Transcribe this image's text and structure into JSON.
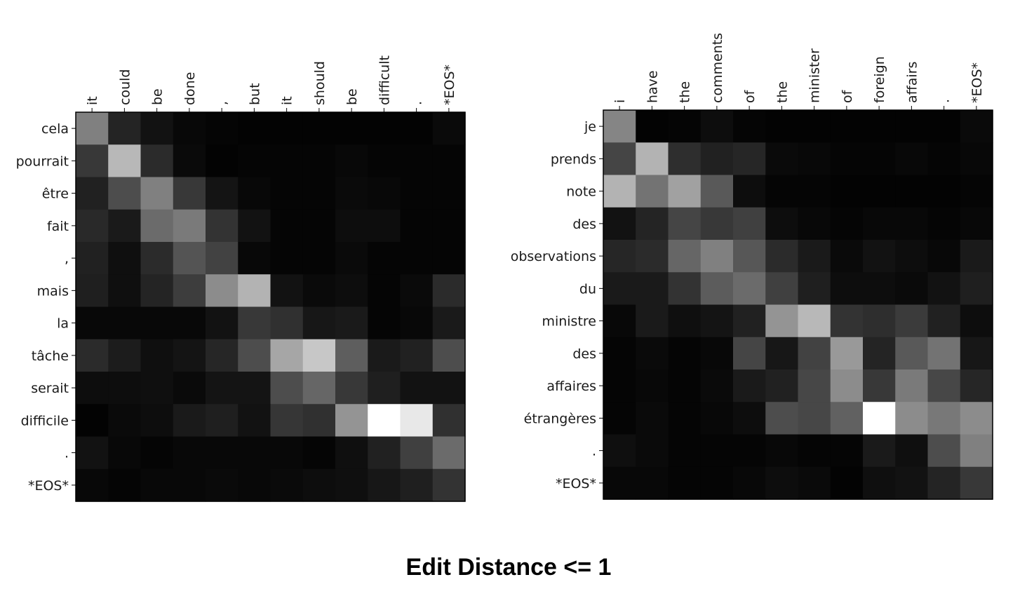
{
  "caption": "Edit Distance <= 1",
  "chart_data": [
    {
      "type": "heatmap",
      "colormap": "gray",
      "value_range": [
        0,
        1
      ],
      "x_tick_labels": [
        "it",
        "could",
        "be",
        "done",
        ",",
        "but",
        "it",
        "should",
        "be",
        "difficult",
        ".",
        "*EOS*"
      ],
      "y_tick_labels": [
        "cela",
        "pourrait",
        "être",
        "fait",
        ",",
        "mais",
        "la",
        "tâche",
        "serait",
        "difficile",
        ".",
        "*EOS*"
      ],
      "values": [
        [
          0.5,
          0.14,
          0.07,
          0.03,
          0.02,
          0.01,
          0.01,
          0.01,
          0.01,
          0.01,
          0.01,
          0.04
        ],
        [
          0.22,
          0.72,
          0.17,
          0.04,
          0.01,
          0.02,
          0.02,
          0.02,
          0.03,
          0.02,
          0.02,
          0.02
        ],
        [
          0.13,
          0.3,
          0.5,
          0.22,
          0.08,
          0.03,
          0.02,
          0.02,
          0.04,
          0.03,
          0.02,
          0.02
        ],
        [
          0.16,
          0.1,
          0.42,
          0.48,
          0.2,
          0.07,
          0.02,
          0.02,
          0.05,
          0.05,
          0.02,
          0.02
        ],
        [
          0.13,
          0.06,
          0.17,
          0.33,
          0.26,
          0.03,
          0.02,
          0.02,
          0.04,
          0.02,
          0.02,
          0.02
        ],
        [
          0.12,
          0.06,
          0.14,
          0.24,
          0.55,
          0.7,
          0.07,
          0.04,
          0.05,
          0.02,
          0.04,
          0.17
        ],
        [
          0.03,
          0.03,
          0.03,
          0.03,
          0.07,
          0.22,
          0.19,
          0.09,
          0.1,
          0.02,
          0.03,
          0.1
        ],
        [
          0.17,
          0.11,
          0.06,
          0.08,
          0.15,
          0.3,
          0.65,
          0.78,
          0.37,
          0.1,
          0.13,
          0.3
        ],
        [
          0.05,
          0.05,
          0.06,
          0.04,
          0.08,
          0.08,
          0.3,
          0.4,
          0.22,
          0.12,
          0.07,
          0.07
        ],
        [
          0.01,
          0.04,
          0.05,
          0.1,
          0.12,
          0.07,
          0.21,
          0.19,
          0.58,
          1.0,
          0.91,
          0.19
        ],
        [
          0.07,
          0.03,
          0.02,
          0.03,
          0.03,
          0.03,
          0.03,
          0.02,
          0.06,
          0.13,
          0.25,
          0.42
        ],
        [
          0.03,
          0.02,
          0.03,
          0.03,
          0.04,
          0.03,
          0.04,
          0.05,
          0.06,
          0.09,
          0.12,
          0.2
        ]
      ]
    },
    {
      "type": "heatmap",
      "colormap": "gray",
      "value_range": [
        0,
        1
      ],
      "x_tick_labels": [
        "i",
        "have",
        "the",
        "comments",
        "of",
        "the",
        "minister",
        "of",
        "foreign",
        "affairs",
        ".",
        "*EOS*"
      ],
      "y_tick_labels": [
        "je",
        "prends",
        "note",
        "des",
        "observations",
        "du",
        "ministre",
        "des",
        "affaires",
        "étrangères",
        ".",
        "*EOS*"
      ],
      "values": [
        [
          0.52,
          0.01,
          0.02,
          0.05,
          0.02,
          0.01,
          0.01,
          0.01,
          0.01,
          0.01,
          0.01,
          0.04
        ],
        [
          0.27,
          0.7,
          0.18,
          0.13,
          0.15,
          0.04,
          0.03,
          0.02,
          0.02,
          0.03,
          0.02,
          0.03
        ],
        [
          0.7,
          0.45,
          0.63,
          0.35,
          0.05,
          0.02,
          0.02,
          0.01,
          0.01,
          0.01,
          0.01,
          0.02
        ],
        [
          0.07,
          0.14,
          0.27,
          0.22,
          0.25,
          0.05,
          0.03,
          0.02,
          0.03,
          0.03,
          0.02,
          0.03
        ],
        [
          0.15,
          0.17,
          0.4,
          0.5,
          0.34,
          0.17,
          0.1,
          0.04,
          0.07,
          0.05,
          0.03,
          0.1
        ],
        [
          0.1,
          0.1,
          0.2,
          0.36,
          0.42,
          0.25,
          0.12,
          0.05,
          0.05,
          0.04,
          0.07,
          0.12
        ],
        [
          0.03,
          0.1,
          0.06,
          0.08,
          0.13,
          0.58,
          0.72,
          0.2,
          0.18,
          0.23,
          0.13,
          0.05
        ],
        [
          0.02,
          0.04,
          0.02,
          0.03,
          0.27,
          0.09,
          0.26,
          0.6,
          0.14,
          0.35,
          0.45,
          0.09
        ],
        [
          0.02,
          0.03,
          0.02,
          0.04,
          0.1,
          0.13,
          0.28,
          0.55,
          0.22,
          0.48,
          0.28,
          0.15
        ],
        [
          0.02,
          0.04,
          0.02,
          0.03,
          0.05,
          0.3,
          0.28,
          0.38,
          1.0,
          0.55,
          0.47,
          0.55
        ],
        [
          0.06,
          0.04,
          0.02,
          0.02,
          0.02,
          0.03,
          0.02,
          0.02,
          0.1,
          0.06,
          0.3,
          0.5
        ],
        [
          0.03,
          0.03,
          0.02,
          0.02,
          0.03,
          0.05,
          0.04,
          0.01,
          0.06,
          0.07,
          0.14,
          0.22
        ]
      ]
    }
  ]
}
